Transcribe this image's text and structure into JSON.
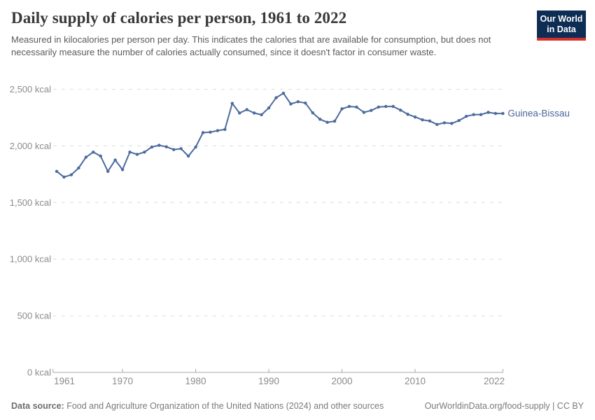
{
  "header": {
    "title": "Daily supply of calories per person, 1961 to 2022",
    "subtitle": "Measured in kilocalories per person per day. This indicates the calories that are available for consumption, but does not necessarily measure the number of calories actually consumed, since it doesn't factor in consumer waste.",
    "logo": {
      "line1": "Our World",
      "line2": "in Data"
    }
  },
  "footer": {
    "source_label": "Data source:",
    "source_text": " Food and Agriculture Organization of the United Nations (2024) and other sources",
    "link_text": "OurWorldinData.org/food-supply | CC BY"
  },
  "colors": {
    "series_blue": "#4c6a9d",
    "gridline": "#dcdcdc",
    "axis": "#a8a8a8",
    "tick_text": "#8b8b8b",
    "logo_navy": "#0d2d55",
    "logo_red": "#d7302b"
  },
  "chart_data": {
    "type": "line",
    "title": "Daily supply of calories per person, 1961 to 2022",
    "xlabel": "",
    "ylabel": "",
    "unit": "kcal",
    "ylim": [
      0,
      2500
    ],
    "y_ticks": [
      0,
      500,
      1000,
      1500,
      2000,
      2500
    ],
    "x_ticks": [
      1961,
      1970,
      1980,
      1990,
      2000,
      2010,
      2022
    ],
    "grid": "horizontal-dashed",
    "legend_position": "end-of-line-label",
    "series": [
      {
        "name": "Guinea-Bissau",
        "color": "#4c6a9d",
        "years": [
          1961,
          1962,
          1963,
          1964,
          1965,
          1966,
          1967,
          1968,
          1969,
          1970,
          1971,
          1972,
          1973,
          1974,
          1975,
          1976,
          1977,
          1978,
          1979,
          1980,
          1981,
          1982,
          1983,
          1984,
          1985,
          1986,
          1987,
          1988,
          1989,
          1990,
          1991,
          1992,
          1993,
          1994,
          1995,
          1996,
          1997,
          1998,
          1999,
          2000,
          2001,
          2002,
          2003,
          2004,
          2005,
          2006,
          2007,
          2008,
          2009,
          2010,
          2011,
          2012,
          2013,
          2014,
          2015,
          2016,
          2017,
          2018,
          2019,
          2020,
          2021,
          2022
        ],
        "values": [
          1775,
          1725,
          1745,
          1805,
          1900,
          1945,
          1910,
          1775,
          1875,
          1790,
          1945,
          1925,
          1945,
          1990,
          2005,
          1992,
          1967,
          1975,
          1910,
          1990,
          2117,
          2121,
          2135,
          2145,
          2375,
          2290,
          2320,
          2290,
          2275,
          2335,
          2425,
          2465,
          2370,
          2390,
          2378,
          2292,
          2235,
          2208,
          2218,
          2327,
          2348,
          2343,
          2296,
          2313,
          2343,
          2348,
          2348,
          2316,
          2279,
          2255,
          2230,
          2220,
          2189,
          2204,
          2198,
          2224,
          2261,
          2276,
          2276,
          2296,
          2286,
          2286
        ]
      }
    ]
  }
}
